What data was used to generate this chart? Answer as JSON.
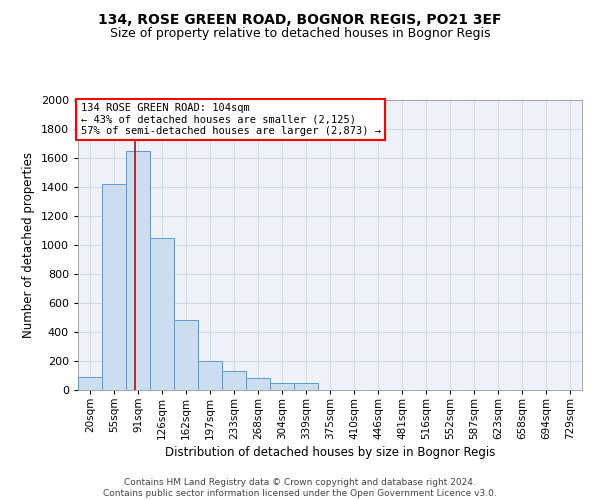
{
  "title_line1": "134, ROSE GREEN ROAD, BOGNOR REGIS, PO21 3EF",
  "title_line2": "Size of property relative to detached houses in Bognor Regis",
  "xlabel": "Distribution of detached houses by size in Bognor Regis",
  "ylabel": "Number of detached properties",
  "footnote": "Contains HM Land Registry data © Crown copyright and database right 2024.\nContains public sector information licensed under the Open Government Licence v3.0.",
  "bin_labels": [
    "20sqm",
    "55sqm",
    "91sqm",
    "126sqm",
    "162sqm",
    "197sqm",
    "233sqm",
    "268sqm",
    "304sqm",
    "339sqm",
    "375sqm",
    "410sqm",
    "446sqm",
    "481sqm",
    "516sqm",
    "552sqm",
    "587sqm",
    "623sqm",
    "658sqm",
    "694sqm",
    "729sqm"
  ],
  "bar_values": [
    90,
    1420,
    1650,
    1050,
    480,
    200,
    130,
    80,
    50,
    50,
    0,
    0,
    0,
    0,
    0,
    0,
    0,
    0,
    0,
    0,
    0
  ],
  "bin_starts": [
    20,
    55,
    91,
    126,
    162,
    197,
    233,
    268,
    304,
    339,
    375,
    410,
    446,
    481,
    516,
    552,
    587,
    623,
    658,
    694,
    729
  ],
  "property_size": 104,
  "annotation_line1": "134 ROSE GREEN ROAD: 104sqm",
  "annotation_line2": "← 43% of detached houses are smaller (2,125)",
  "annotation_line3": "57% of semi-detached houses are larger (2,873) →",
  "bar_fill_color": "#ccddf0",
  "bar_edge_color": "#5b9bd5",
  "red_line_color": "#cc0000",
  "grid_color": "#c8d4e4",
  "background_color": "#eef2f8",
  "ylim": [
    0,
    2000
  ],
  "yticks": [
    0,
    200,
    400,
    600,
    800,
    1000,
    1200,
    1400,
    1600,
    1800,
    2000
  ]
}
